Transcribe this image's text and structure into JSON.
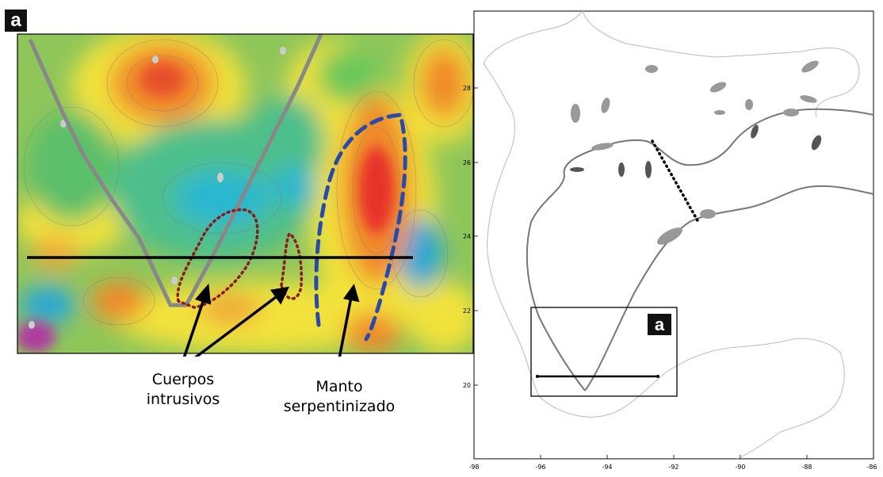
{
  "panel_left": {
    "badge": "a",
    "annotations": {
      "intrusive_line1": "Cuerpos",
      "intrusive_line2": "intrusivos",
      "mantle_line1": "Manto",
      "mantle_line2": "serpentinizado"
    },
    "colors": {
      "intrusive_outline": "#8b1a1a",
      "mantle_outline": "#2a4aa8",
      "boundary": "#888888",
      "profile_line": "#000000"
    }
  },
  "panel_right": {
    "badge": "a",
    "x_ticks": [
      "-98",
      "-96",
      "-94",
      "-92",
      "-90",
      "-88",
      "-86"
    ],
    "y_ticks": [
      "20",
      "22",
      "24",
      "26",
      "28"
    ],
    "colors": {
      "coastline": "#bbbbbb",
      "boundary": "#777777",
      "salt_bodies": "#999999",
      "dark_bodies": "#555555"
    }
  }
}
